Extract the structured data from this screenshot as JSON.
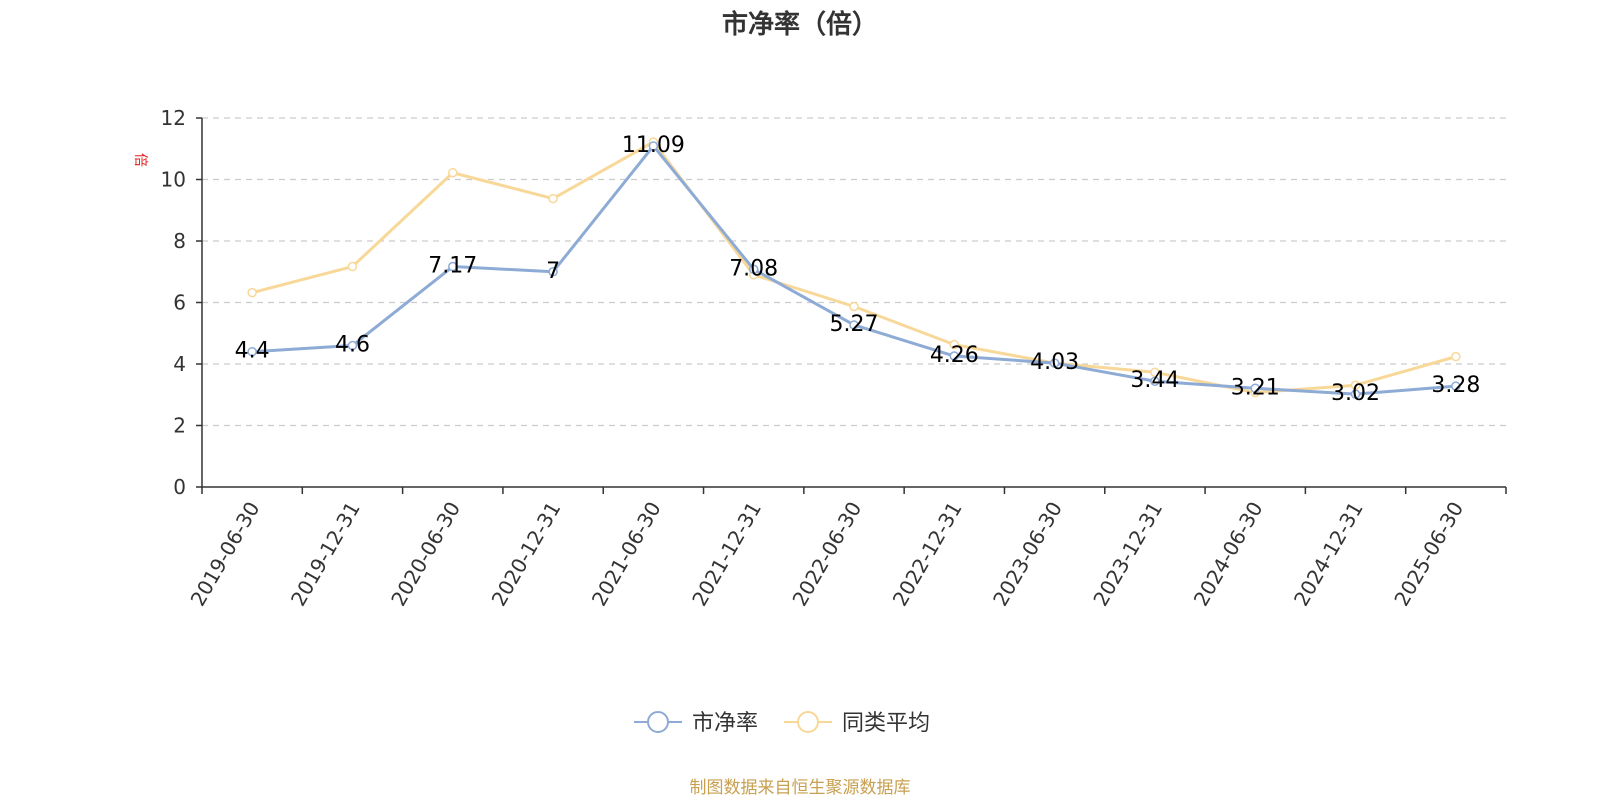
{
  "chart_data": {
    "type": "line",
    "title": "市净率（倍）",
    "ylabel": "倍",
    "ylim": [
      0,
      12
    ],
    "yticks": [
      0,
      2,
      4,
      6,
      8,
      10,
      12
    ],
    "grid": true,
    "legend_position": "bottom",
    "categories": [
      "2019-06-30",
      "2019-12-31",
      "2020-06-30",
      "2020-12-31",
      "2021-06-30",
      "2021-12-31",
      "2022-06-30",
      "2022-12-31",
      "2023-06-30",
      "2023-12-31",
      "2024-06-30",
      "2024-12-31",
      "2025-06-30"
    ],
    "series": [
      {
        "name": "市净率",
        "color": "#8eabd6",
        "values": [
          4.4,
          4.6,
          7.17,
          7,
          11.09,
          7.08,
          5.27,
          4.26,
          4.03,
          3.44,
          3.21,
          3.02,
          3.28
        ],
        "labels": [
          "4.4",
          "4.6",
          "7.17",
          "7",
          "11.09",
          "7.08",
          "5.27",
          "4.26",
          "4.03",
          "3.44",
          "3.21",
          "3.02",
          "3.28"
        ]
      },
      {
        "name": "同类平均",
        "color": "#f8d898",
        "values": [
          6.32,
          7.17,
          10.22,
          9.38,
          11.22,
          6.9,
          5.87,
          4.63,
          4.03,
          3.73,
          3.07,
          3.31,
          4.24
        ]
      }
    ]
  },
  "source": {
    "text": "制图数据来自恒生聚源数据库",
    "color": "#c8a050"
  },
  "unit_color": "#e02020"
}
